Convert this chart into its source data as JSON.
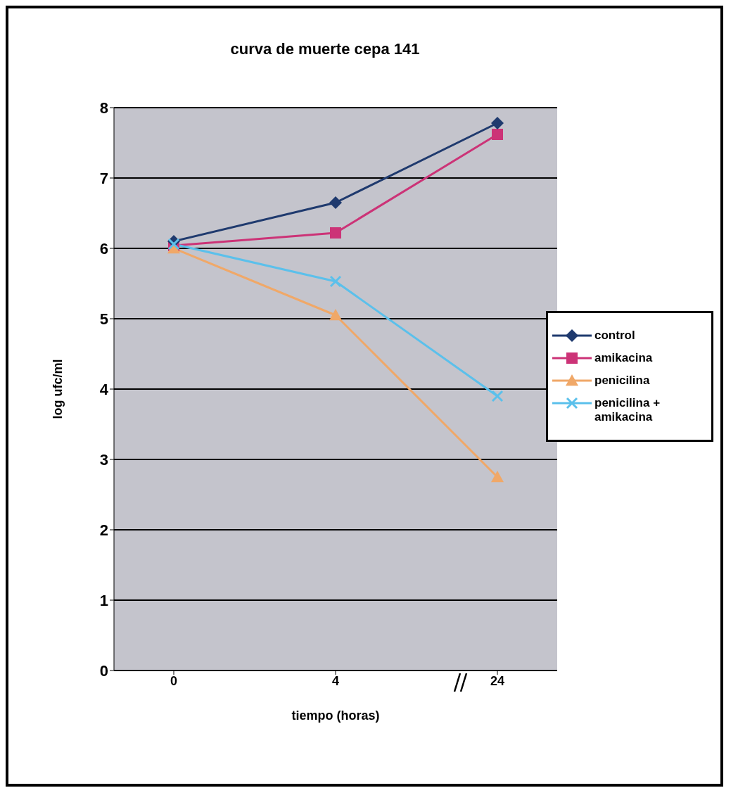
{
  "chart_data": {
    "type": "line",
    "title": "curva de muerte cepa 141",
    "xlabel": "tiempo (horas)",
    "ylabel": "log ufc/ml",
    "categories": [
      "0",
      "4",
      "24"
    ],
    "series": [
      {
        "name": "control",
        "color": "#1f3a6e",
        "marker": "diamond",
        "values": [
          6.1,
          6.65,
          7.78
        ]
      },
      {
        "name": "amikacina",
        "color": "#cc3377",
        "marker": "square",
        "values": [
          6.04,
          6.22,
          7.62
        ]
      },
      {
        "name": "penicilina",
        "color": "#f0a868",
        "marker": "triangle",
        "values": [
          6.0,
          5.05,
          2.75
        ]
      },
      {
        "name": "penicilina + amikacina",
        "color": "#5bc0eb",
        "marker": "cross",
        "values": [
          6.06,
          5.53,
          3.9
        ]
      }
    ],
    "ylim": [
      0,
      8
    ],
    "yticks": [
      0,
      1,
      2,
      3,
      4,
      5,
      6,
      7,
      8
    ],
    "grid": "y",
    "legend": "right"
  }
}
